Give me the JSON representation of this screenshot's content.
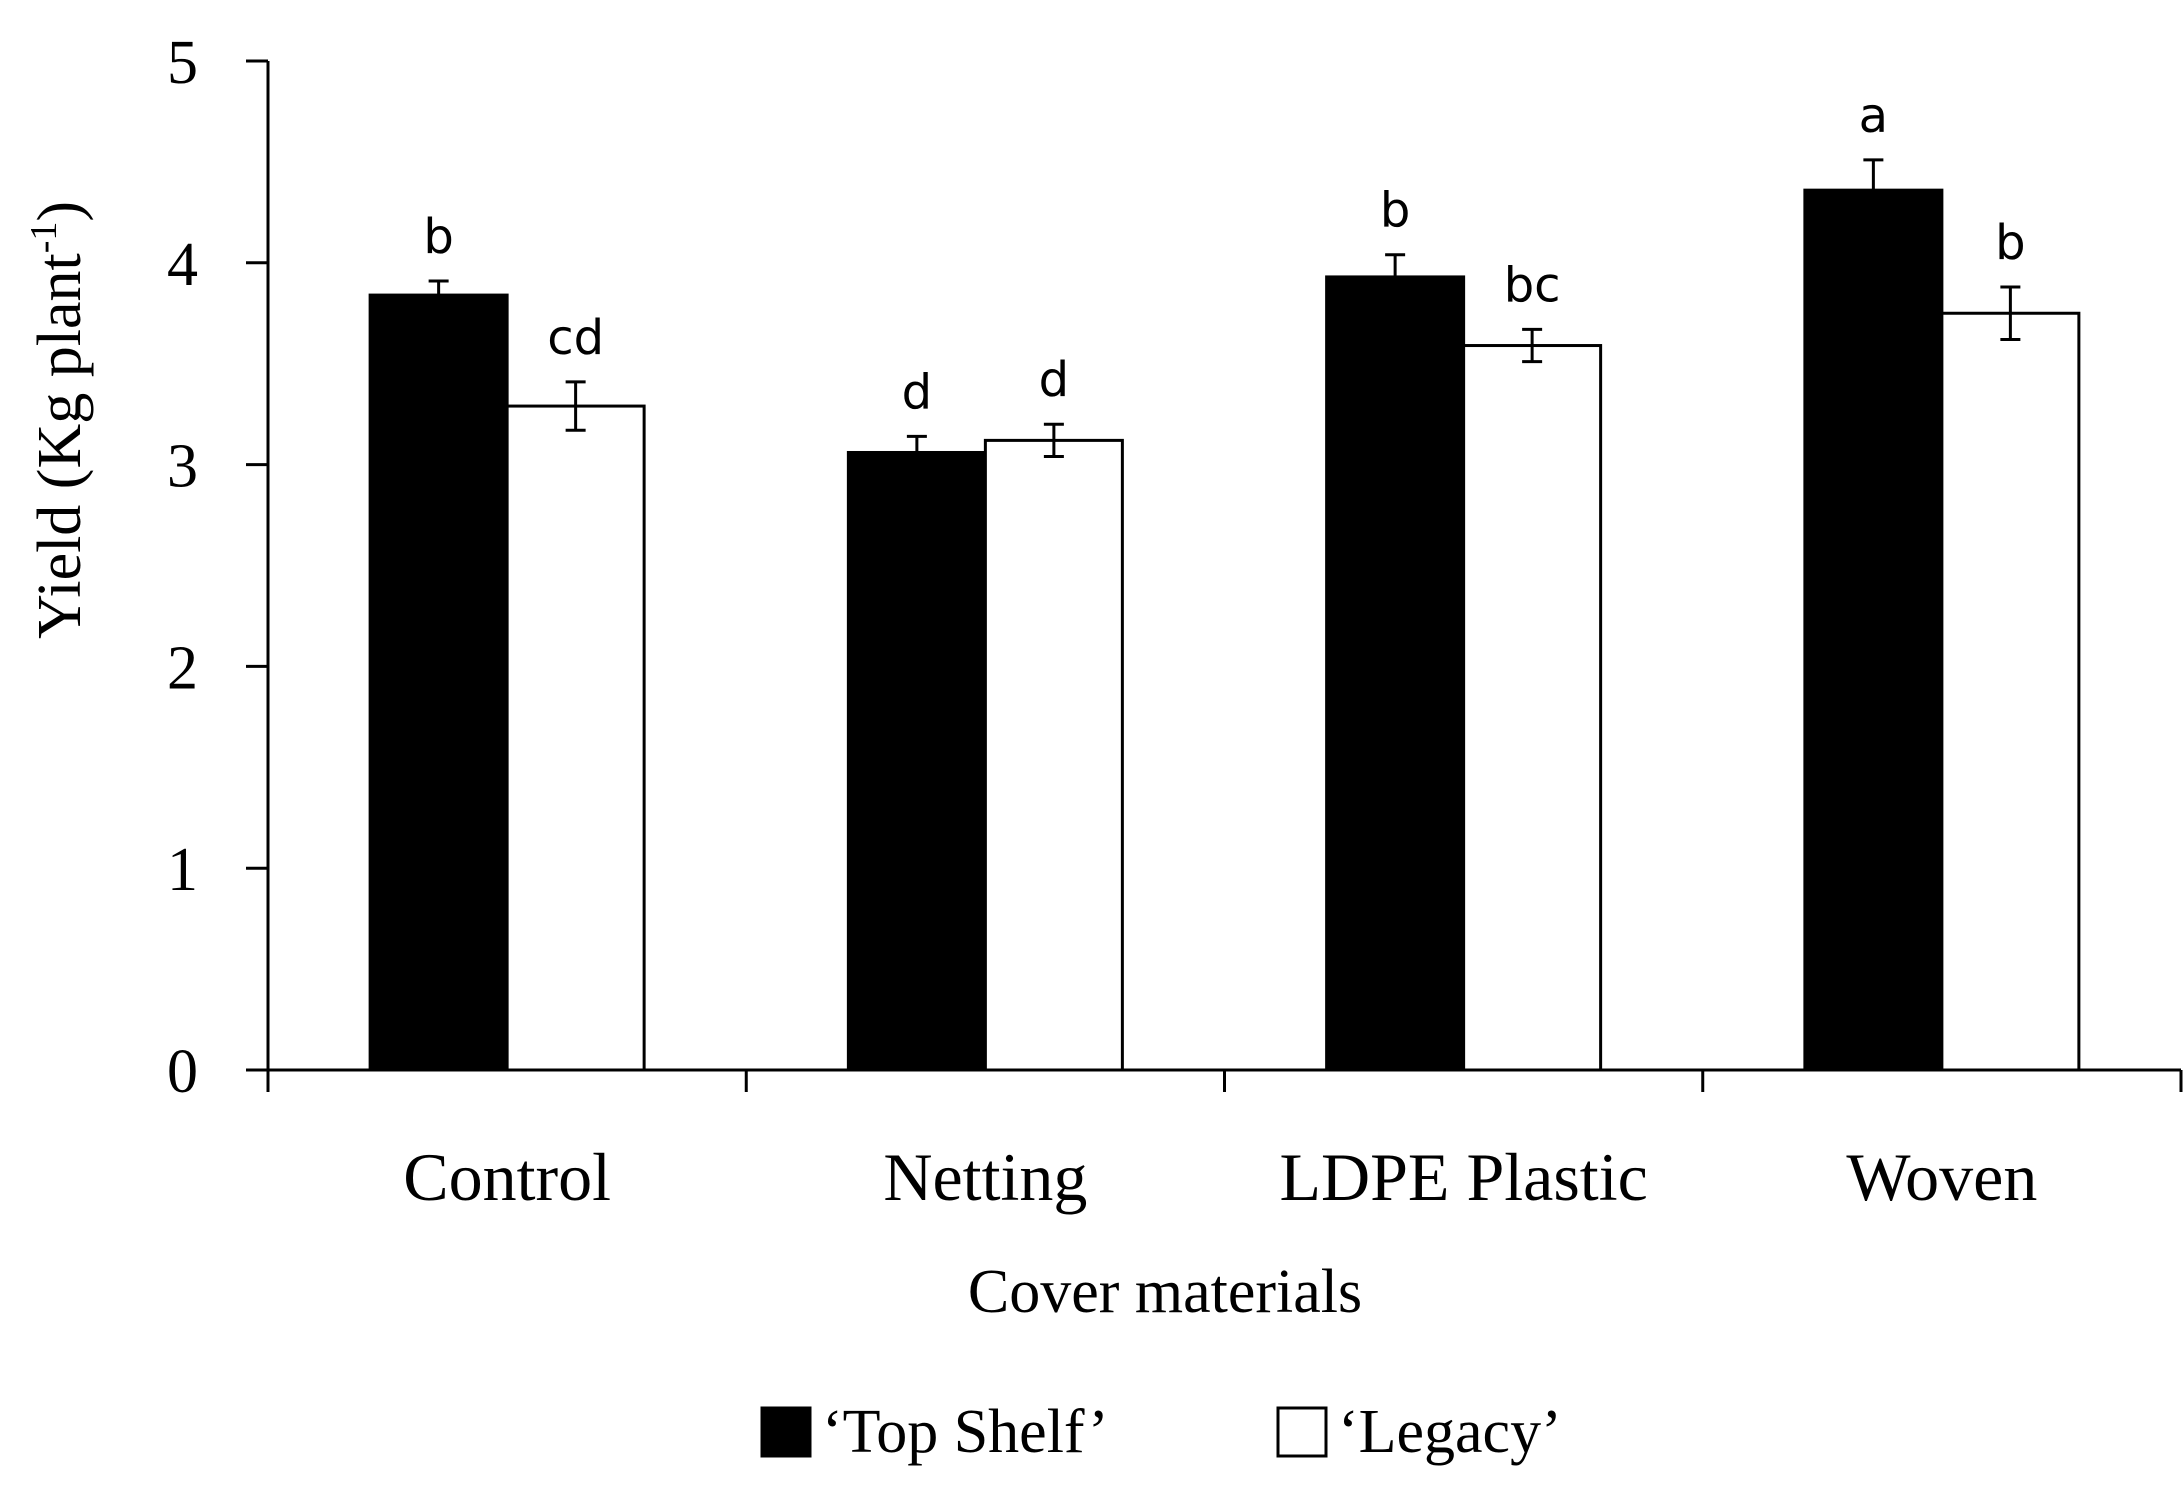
{
  "chart_data": {
    "type": "bar",
    "title": "",
    "xlabel": "Cover materials",
    "ylabel_main": "Yield (Kg plant",
    "ylabel_sup": "-1",
    "ylabel_close": ")",
    "ylim": [
      0,
      5
    ],
    "yticks": [
      "0",
      "1",
      "2",
      "3",
      "4",
      "5"
    ],
    "grid": false,
    "legend_position": "bottom-center",
    "categories": [
      "Control",
      "Netting",
      "LDPE Plastic",
      "Woven"
    ],
    "series": [
      {
        "name": "‘Top Shelf’",
        "fill": "#000000",
        "values": [
          3.84,
          3.06,
          3.93,
          4.36
        ],
        "errors": [
          0.07,
          0.08,
          0.11,
          0.15
        ],
        "letters": [
          "b",
          "d",
          "b",
          "a"
        ]
      },
      {
        "name": "‘Legacy’",
        "fill": "#ffffff",
        "values": [
          3.29,
          3.12,
          3.59,
          3.75
        ],
        "errors": [
          0.12,
          0.08,
          0.08,
          0.13
        ],
        "letters": [
          "cd",
          "d",
          "bc",
          "b"
        ]
      }
    ]
  }
}
